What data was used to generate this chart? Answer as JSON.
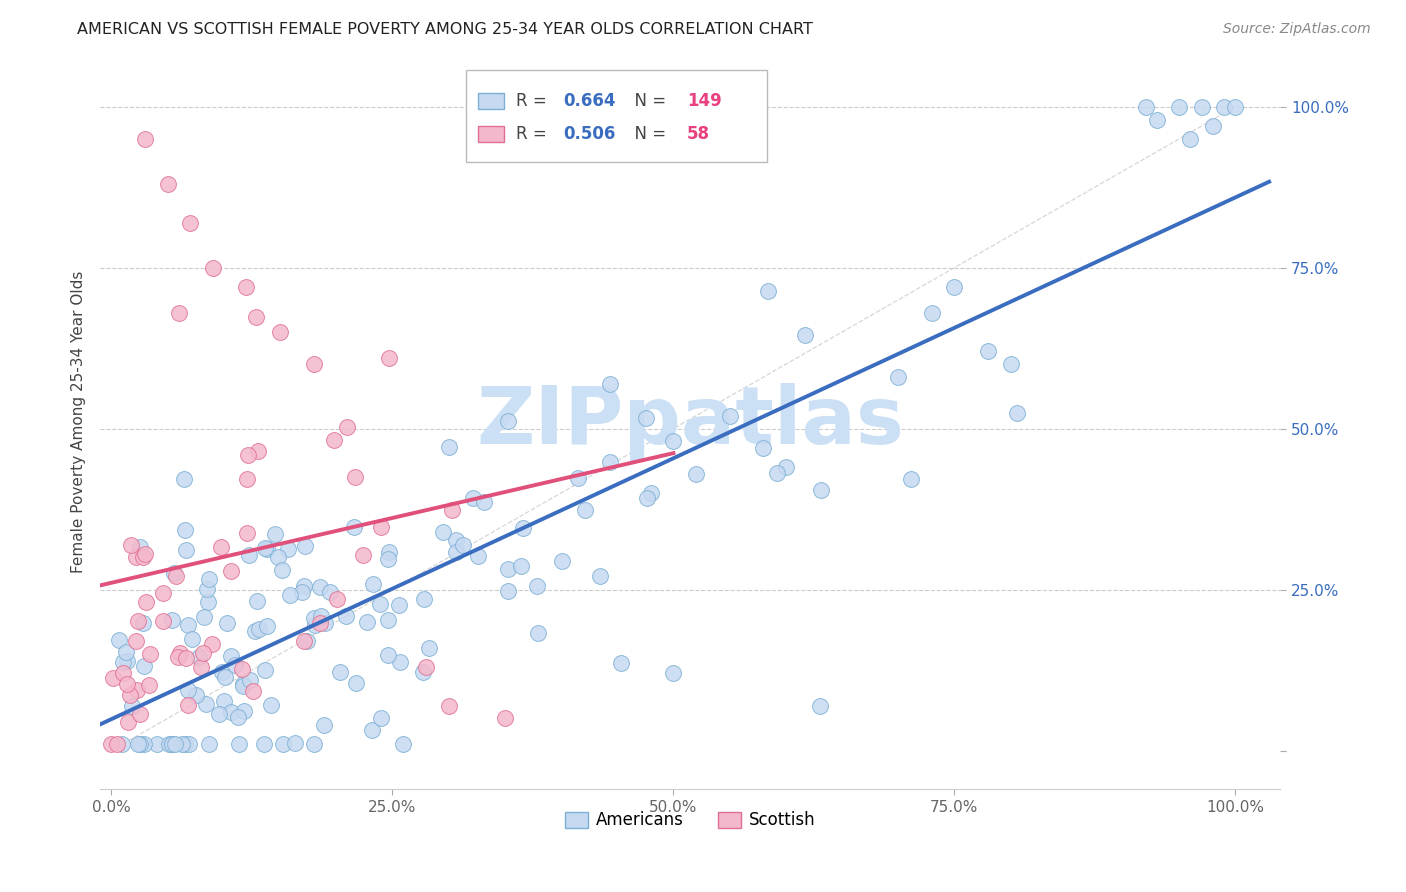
{
  "title": "AMERICAN VS SCOTTISH FEMALE POVERTY AMONG 25-34 YEAR OLDS CORRELATION CHART",
  "source": "Source: ZipAtlas.com",
  "ylabel": "Female Poverty Among 25-34 Year Olds",
  "xtick_labels": [
    "0.0%",
    "25.0%",
    "50.0%",
    "75.0%",
    "100.0%"
  ],
  "ytick_labels": [
    "",
    "25.0%",
    "50.0%",
    "75.0%",
    "100.0%"
  ],
  "american_color": "#c6d9f1",
  "american_edge": "#7bafd4",
  "scottish_color": "#f4b8cc",
  "scottish_edge": "#e07090",
  "american_line_color": "#3a6dbf",
  "scottish_line_color": "#e0507a",
  "american_R": 0.664,
  "american_N": 149,
  "scottish_R": 0.506,
  "scottish_N": 58,
  "legend_american": "Americans",
  "legend_scottish": "Scottish",
  "watermark_color": "#cce0f5"
}
